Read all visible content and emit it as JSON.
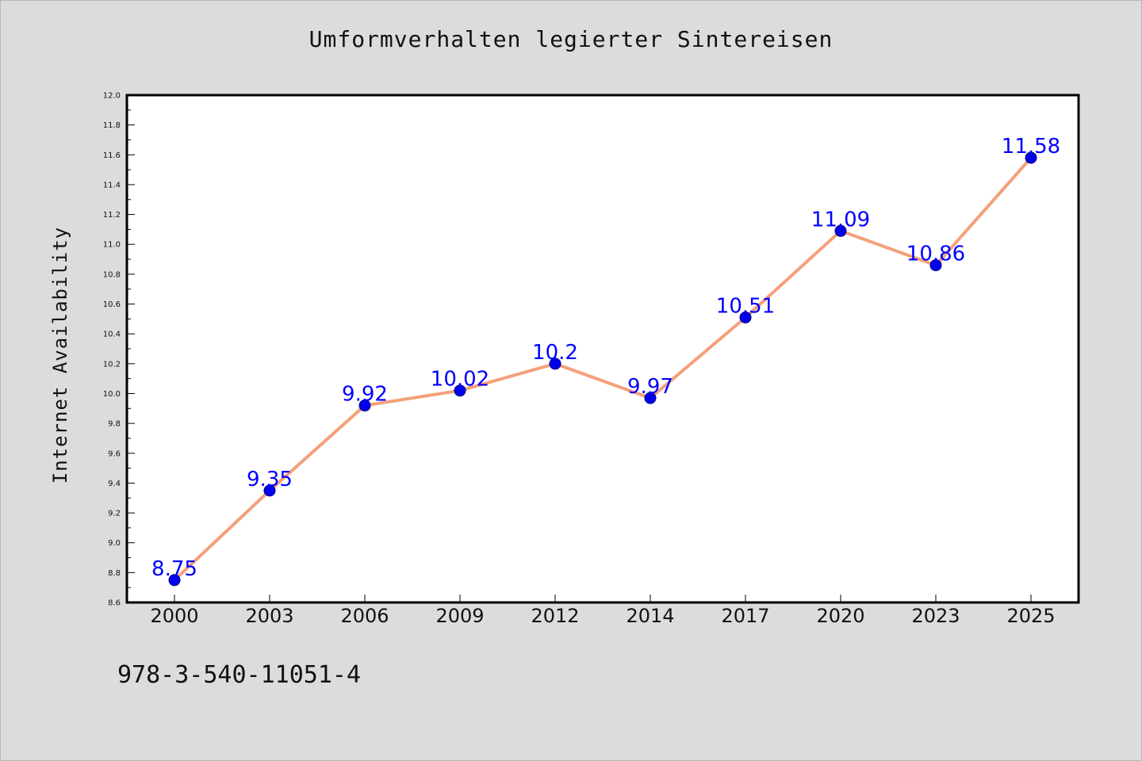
{
  "chart_data": {
    "type": "line",
    "title": "Umformverhalten legierter Sintereisen",
    "ylabel": "Internet Availability",
    "xlabel": "",
    "categories": [
      "2000",
      "2003",
      "2006",
      "2009",
      "2012",
      "2014",
      "2017",
      "2020",
      "2023",
      "2025"
    ],
    "series": [
      {
        "values": [
          8.75,
          9.35,
          9.92,
          10.02,
          10.2,
          9.97,
          10.51,
          11.09,
          10.86,
          11.58
        ],
        "labels": [
          "8.75",
          "9.35",
          "9.92",
          "10.02",
          "10.2",
          "9.97",
          "10.51",
          "11.09",
          "10.86",
          "11.58"
        ]
      }
    ],
    "ylim": [
      8.6,
      12.0
    ],
    "yticks": [
      "8.6",
      "8.8",
      "9.0",
      "9.2",
      "9.4",
      "9.6",
      "9.8",
      "10.0",
      "10.2",
      "10.4",
      "10.6",
      "10.8",
      "11.0",
      "11.2",
      "11.4",
      "11.6",
      "11.8",
      "12.0"
    ],
    "grid": false,
    "data_labels": true,
    "colors": {
      "line": "#f4a07a",
      "marker": "#0000ee",
      "label": "#0000ff",
      "plot_background": "#ffffff",
      "page_background": "#dcdcdc"
    }
  },
  "footnote": "978-3-540-11051-4"
}
